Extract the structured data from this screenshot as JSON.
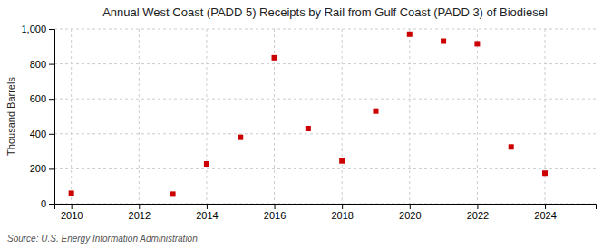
{
  "chart_data": {
    "type": "scatter",
    "title": "Annual West Coast (PADD 5) Receipts by Rail from Gulf Coast (PADD 3) of Biodiesel",
    "ylabel": "Thousand Barrels",
    "source": "Source: U.S. Energy Information Administration",
    "x": [
      2010,
      2013,
      2014,
      2015,
      2016,
      2017,
      2018,
      2019,
      2020,
      2021,
      2022,
      2023,
      2024
    ],
    "values": [
      60,
      55,
      228,
      380,
      835,
      430,
      245,
      530,
      970,
      930,
      915,
      325,
      175
    ],
    "color": "#cc0000",
    "marker": "square",
    "xlim": [
      2009.5,
      2025.5
    ],
    "ylim": [
      0,
      1000
    ],
    "xticks": [
      2010,
      2012,
      2014,
      2016,
      2018,
      2020,
      2022,
      2024
    ],
    "yticks": [
      0,
      200,
      400,
      600,
      800,
      {
        "value": 1000,
        "label": "1,000"
      }
    ],
    "grid": true
  }
}
